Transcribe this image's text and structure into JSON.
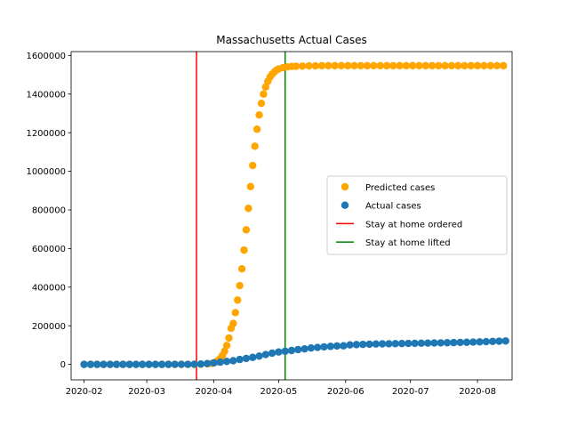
{
  "chart_data": {
    "type": "scatter",
    "title": "Massachusetts Actual Cases",
    "xlabel": "",
    "ylabel": "",
    "x_axis_kind": "date",
    "xlim": [
      "2020-01-26",
      "2020-08-17"
    ],
    "ylim": [
      -80000,
      1620000
    ],
    "x_ticks": [
      "2020-02-01",
      "2020-03-01",
      "2020-04-01",
      "2020-05-01",
      "2020-06-01",
      "2020-07-01",
      "2020-08-01"
    ],
    "x_tick_labels": [
      "2020-02",
      "2020-03",
      "2020-04",
      "2020-05",
      "2020-06",
      "2020-07",
      "2020-08"
    ],
    "y_ticks": [
      0,
      200000,
      400000,
      600000,
      800000,
      1000000,
      1200000,
      1400000,
      1600000
    ],
    "y_tick_labels": [
      "0",
      "200000",
      "400000",
      "600000",
      "800000",
      "1000000",
      "1200000",
      "1400000",
      "1600000"
    ],
    "grid": false,
    "legend_position": "right",
    "series": [
      {
        "name": "Predicted cases",
        "color": "#ffa500",
        "marker": "circle",
        "points": [
          [
            "2020-02-01",
            0
          ],
          [
            "2020-02-04",
            0
          ],
          [
            "2020-02-07",
            0
          ],
          [
            "2020-02-10",
            0
          ],
          [
            "2020-02-13",
            0
          ],
          [
            "2020-02-16",
            0
          ],
          [
            "2020-02-19",
            0
          ],
          [
            "2020-02-22",
            0
          ],
          [
            "2020-02-25",
            0
          ],
          [
            "2020-02-28",
            0
          ],
          [
            "2020-03-02",
            0
          ],
          [
            "2020-03-05",
            0
          ],
          [
            "2020-03-08",
            0
          ],
          [
            "2020-03-11",
            0
          ],
          [
            "2020-03-14",
            0
          ],
          [
            "2020-03-17",
            0
          ],
          [
            "2020-03-20",
            0
          ],
          [
            "2020-03-23",
            0
          ],
          [
            "2020-03-26",
            1000
          ],
          [
            "2020-03-29",
            3000
          ],
          [
            "2020-03-31",
            5000
          ],
          [
            "2020-04-01",
            8000
          ],
          [
            "2020-04-02",
            13000
          ],
          [
            "2020-04-03",
            20000
          ],
          [
            "2020-04-04",
            31000
          ],
          [
            "2020-04-05",
            46000
          ],
          [
            "2020-04-06",
            68000
          ],
          [
            "2020-04-07",
            98000
          ],
          [
            "2020-04-08",
            137000
          ],
          [
            "2020-04-09",
            187000
          ],
          [
            "2020-04-10",
            212000
          ],
          [
            "2020-04-11",
            268000
          ],
          [
            "2020-04-12",
            333000
          ],
          [
            "2020-04-13",
            408000
          ],
          [
            "2020-04-14",
            495000
          ],
          [
            "2020-04-15",
            592000
          ],
          [
            "2020-04-16",
            697000
          ],
          [
            "2020-04-17",
            808000
          ],
          [
            "2020-04-18",
            921000
          ],
          [
            "2020-04-19",
            1030000
          ],
          [
            "2020-04-20",
            1130000
          ],
          [
            "2020-04-21",
            1218000
          ],
          [
            "2020-04-22",
            1292000
          ],
          [
            "2020-04-23",
            1352000
          ],
          [
            "2020-04-24",
            1400000
          ],
          [
            "2020-04-25",
            1437000
          ],
          [
            "2020-04-26",
            1466000
          ],
          [
            "2020-04-27",
            1488000
          ],
          [
            "2020-04-28",
            1503000
          ],
          [
            "2020-04-29",
            1515000
          ],
          [
            "2020-04-30",
            1524000
          ],
          [
            "2020-05-01",
            1530000
          ],
          [
            "2020-05-03",
            1537000
          ],
          [
            "2020-05-05",
            1541000
          ],
          [
            "2020-05-07",
            1543000
          ],
          [
            "2020-05-09",
            1544000
          ],
          [
            "2020-05-12",
            1545000
          ],
          [
            "2020-05-15",
            1546000
          ],
          [
            "2020-05-18",
            1546000
          ],
          [
            "2020-05-21",
            1547000
          ],
          [
            "2020-05-24",
            1547000
          ],
          [
            "2020-05-27",
            1547000
          ],
          [
            "2020-05-30",
            1547000
          ],
          [
            "2020-06-02",
            1547000
          ],
          [
            "2020-06-05",
            1547000
          ],
          [
            "2020-06-08",
            1547000
          ],
          [
            "2020-06-11",
            1547000
          ],
          [
            "2020-06-14",
            1547000
          ],
          [
            "2020-06-17",
            1547000
          ],
          [
            "2020-06-20",
            1547000
          ],
          [
            "2020-06-23",
            1547000
          ],
          [
            "2020-06-26",
            1547000
          ],
          [
            "2020-06-29",
            1547000
          ],
          [
            "2020-07-02",
            1547000
          ],
          [
            "2020-07-05",
            1547000
          ],
          [
            "2020-07-08",
            1547000
          ],
          [
            "2020-07-11",
            1547000
          ],
          [
            "2020-07-14",
            1547000
          ],
          [
            "2020-07-17",
            1547000
          ],
          [
            "2020-07-20",
            1547000
          ],
          [
            "2020-07-23",
            1547000
          ],
          [
            "2020-07-26",
            1547000
          ],
          [
            "2020-07-29",
            1547000
          ],
          [
            "2020-08-01",
            1547000
          ],
          [
            "2020-08-04",
            1547000
          ],
          [
            "2020-08-07",
            1547000
          ],
          [
            "2020-08-10",
            1547000
          ],
          [
            "2020-08-13",
            1547000
          ]
        ]
      },
      {
        "name": "Actual cases",
        "color": "#1f77b4",
        "marker": "circle",
        "points": [
          [
            "2020-02-01",
            0
          ],
          [
            "2020-02-04",
            0
          ],
          [
            "2020-02-07",
            0
          ],
          [
            "2020-02-10",
            0
          ],
          [
            "2020-02-13",
            0
          ],
          [
            "2020-02-16",
            0
          ],
          [
            "2020-02-19",
            0
          ],
          [
            "2020-02-22",
            0
          ],
          [
            "2020-02-25",
            0
          ],
          [
            "2020-02-28",
            0
          ],
          [
            "2020-03-02",
            0
          ],
          [
            "2020-03-05",
            0
          ],
          [
            "2020-03-08",
            100
          ],
          [
            "2020-03-11",
            100
          ],
          [
            "2020-03-14",
            200
          ],
          [
            "2020-03-17",
            200
          ],
          [
            "2020-03-20",
            400
          ],
          [
            "2020-03-23",
            800
          ],
          [
            "2020-03-26",
            2000
          ],
          [
            "2020-03-29",
            4500
          ],
          [
            "2020-04-01",
            7700
          ],
          [
            "2020-04-04",
            11700
          ],
          [
            "2020-04-07",
            15200
          ],
          [
            "2020-04-10",
            19000
          ],
          [
            "2020-04-13",
            25500
          ],
          [
            "2020-04-16",
            30800
          ],
          [
            "2020-04-19",
            36400
          ],
          [
            "2020-04-22",
            42900
          ],
          [
            "2020-04-25",
            50900
          ],
          [
            "2020-04-28",
            58300
          ],
          [
            "2020-05-01",
            64300
          ],
          [
            "2020-05-04",
            68100
          ],
          [
            "2020-05-07",
            72000
          ],
          [
            "2020-05-10",
            76700
          ],
          [
            "2020-05-13",
            80500
          ],
          [
            "2020-05-16",
            84900
          ],
          [
            "2020-05-19",
            88000
          ],
          [
            "2020-05-22",
            90900
          ],
          [
            "2020-05-25",
            93300
          ],
          [
            "2020-05-28",
            95500
          ],
          [
            "2020-05-31",
            96300
          ],
          [
            "2020-06-03",
            101200
          ],
          [
            "2020-06-06",
            102500
          ],
          [
            "2020-06-09",
            103600
          ],
          [
            "2020-06-12",
            104600
          ],
          [
            "2020-06-15",
            105600
          ],
          [
            "2020-06-18",
            106200
          ],
          [
            "2020-06-21",
            106900
          ],
          [
            "2020-06-24",
            107400
          ],
          [
            "2020-06-27",
            108000
          ],
          [
            "2020-06-30",
            108700
          ],
          [
            "2020-07-03",
            109100
          ],
          [
            "2020-07-06",
            109800
          ],
          [
            "2020-07-09",
            110300
          ],
          [
            "2020-07-12",
            110900
          ],
          [
            "2020-07-15",
            111600
          ],
          [
            "2020-07-18",
            112300
          ],
          [
            "2020-07-21",
            113000
          ],
          [
            "2020-07-24",
            113800
          ],
          [
            "2020-07-27",
            114600
          ],
          [
            "2020-07-30",
            115600
          ],
          [
            "2020-08-02",
            116700
          ],
          [
            "2020-08-05",
            117800
          ],
          [
            "2020-08-08",
            119000
          ],
          [
            "2020-08-11",
            120300
          ],
          [
            "2020-08-14",
            121500
          ]
        ]
      }
    ],
    "vlines": [
      {
        "name": "Stay at home ordered",
        "x": "2020-03-24",
        "color": "#ff0000"
      },
      {
        "name": "Stay at home lifted",
        "x": "2020-05-04",
        "color": "#008000"
      }
    ],
    "legend": [
      {
        "label": "Predicted cases",
        "kind": "marker",
        "color": "#ffa500"
      },
      {
        "label": "Actual cases",
        "kind": "marker",
        "color": "#1f77b4"
      },
      {
        "label": "Stay at home ordered",
        "kind": "line",
        "color": "#ff0000"
      },
      {
        "label": "Stay at home lifted",
        "kind": "line",
        "color": "#008000"
      }
    ]
  }
}
